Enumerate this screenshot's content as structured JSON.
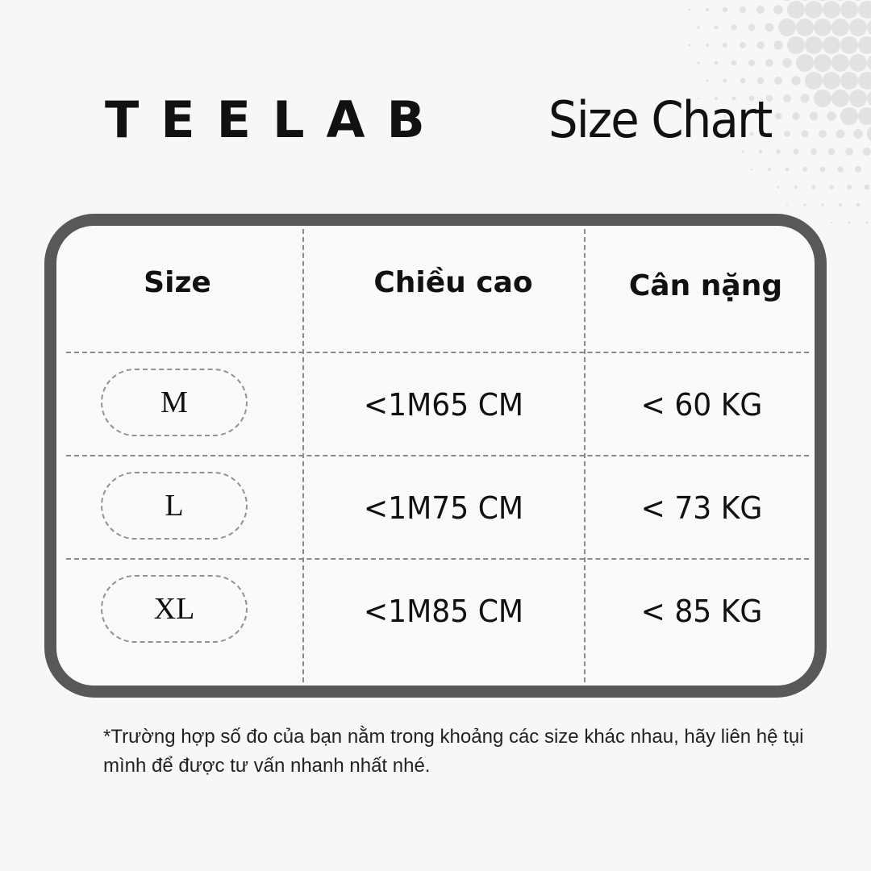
{
  "brand": "TEELAB",
  "title": "Size Chart",
  "headers": [
    "Size",
    "Chiều cao",
    "Cân nặng"
  ],
  "rows": [
    {
      "size": "M",
      "height": "<1M65 CM",
      "weight": "< 60 KG"
    },
    {
      "size": "L",
      "height": "<1M75 CM",
      "weight": "< 73 KG"
    },
    {
      "size": "XL",
      "height": "<1M85 CM",
      "weight": "< 85 KG"
    }
  ],
  "note": "*Trường hợp số đo của bạn nằm trong khoảng các size khác nhau, hãy liên hệ tụi mình để được tư vấn nhanh nhất nhé.",
  "colors": {
    "frame": "#585858",
    "background": "#f7f7f7",
    "dots": "#e2e2e2"
  }
}
